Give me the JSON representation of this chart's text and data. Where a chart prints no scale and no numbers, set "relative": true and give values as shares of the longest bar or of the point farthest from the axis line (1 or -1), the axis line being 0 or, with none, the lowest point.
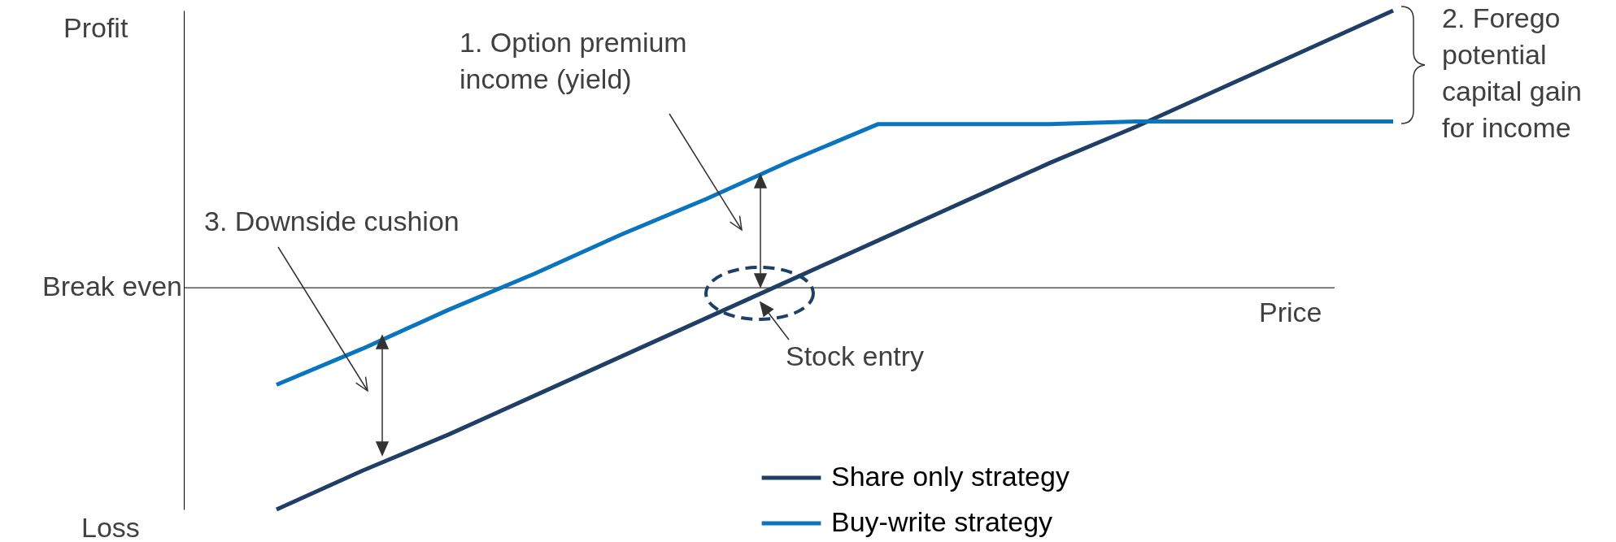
{
  "chart_data": {
    "type": "line",
    "relative": true,
    "xlabel": "Price",
    "categories": [
      null,
      null,
      null,
      null,
      null,
      null,
      null,
      null,
      null,
      null,
      null,
      null,
      null,
      null
    ],
    "series": [
      {
        "name": "Share only strategy",
        "color": "#1f3f66",
        "values": [
          -0.8,
          -0.66,
          -0.53,
          -0.39,
          -0.25,
          -0.11,
          0.03,
          0.17,
          0.31,
          0.45,
          0.58,
          0.72,
          0.86,
          1.0
        ]
      },
      {
        "name": "Buy-write strategy",
        "color": "#0a75be",
        "values": [
          -0.35,
          -0.22,
          -0.08,
          0.05,
          0.19,
          0.32,
          0.46,
          0.59,
          0.59,
          0.59,
          0.6,
          0.6,
          0.6,
          0.6
        ]
      }
    ],
    "ref_lines": [
      {
        "axis": "y",
        "value": 0,
        "label": "Break even",
        "color": "#000000"
      }
    ],
    "annotations": [
      "Profit",
      "Loss",
      "1. Option premium income (yield)",
      "2. Forego potential capital gain for income",
      "3. Downside cushion",
      "Stock entry"
    ],
    "legend": "bottom",
    "marker": "none",
    "line_style": "solid"
  }
}
